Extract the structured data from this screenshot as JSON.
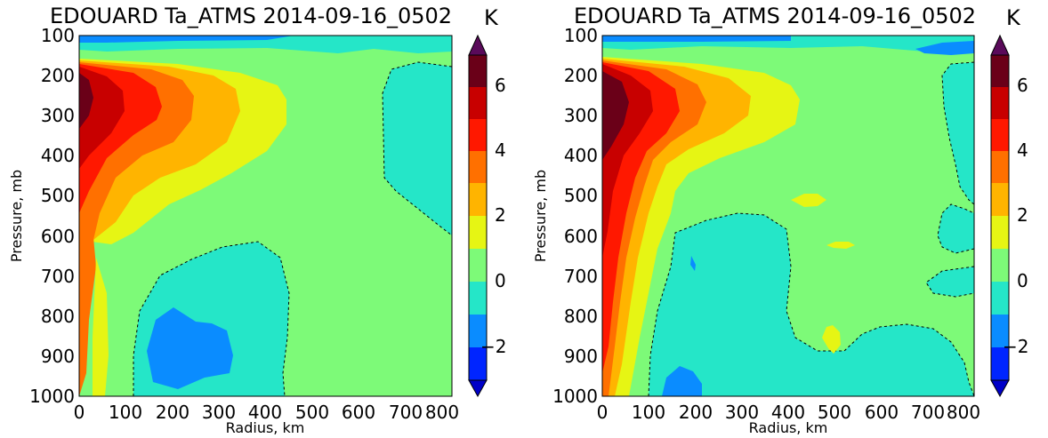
{
  "chart_data": [
    {
      "type": "contour",
      "title": "EDOUARD Ta_ATMS  2014-09-16_0502",
      "xlabel": "Radius, km",
      "ylabel": "Pressure, mb",
      "colorbar_unit": "K",
      "x_ticks": [
        "0",
        "100",
        "200",
        "300",
        "400",
        "500",
        "600",
        "700",
        "800"
      ],
      "y_ticks": [
        "100",
        "200",
        "300",
        "400",
        "500",
        "600",
        "700",
        "800",
        "900",
        "1000"
      ],
      "colorbar_ticks": [
        "6",
        "4",
        "2",
        "0",
        "−2"
      ],
      "xlim": [
        0,
        800
      ],
      "ylim": [
        1000,
        100
      ],
      "y_inverted": true,
      "contour_levels": [
        -3,
        -2,
        -1,
        0,
        1,
        2,
        3,
        4,
        5,
        6,
        7
      ],
      "features": [
        {
          "region": "warm core near center",
          "radius_km": [
            0,
            50
          ],
          "pressure_mb": [
            200,
            300
          ],
          "max_anomaly_K": 7
        },
        {
          "region": "upper warm anomaly",
          "radius_km": [
            0,
            420
          ],
          "pressure_mb": [
            160,
            600
          ],
          "anomaly_K": [
            1,
            7
          ]
        },
        {
          "region": "cool anomaly",
          "radius_km": [
            120,
            440
          ],
          "pressure_mb": [
            640,
            1000
          ],
          "anomaly_K": [
            -2,
            0
          ],
          "min_center_km": 230,
          "min_center_mb": 880
        },
        {
          "region": "outer cool anomaly",
          "radius_km": [
            640,
            800
          ],
          "pressure_mb": [
            160,
            600
          ],
          "anomaly_K": [
            -1,
            0
          ]
        },
        {
          "region": "top cold layer",
          "radius_km": [
            0,
            800
          ],
          "pressure_mb": [
            100,
            140
          ],
          "anomaly_K": [
            -3,
            0
          ]
        }
      ]
    },
    {
      "type": "contour",
      "title": "EDOUARD Ta_ATMS  2014-09-16_0502",
      "xlabel": "Radius, km",
      "ylabel": "Pressure, mb",
      "colorbar_unit": "K",
      "x_ticks": [
        "0",
        "100",
        "200",
        "300",
        "400",
        "500",
        "600",
        "700",
        "800"
      ],
      "y_ticks": [
        "100",
        "200",
        "300",
        "400",
        "500",
        "600",
        "700",
        "800",
        "900",
        "1000"
      ],
      "colorbar_ticks": [
        "6",
        "4",
        "2",
        "0",
        "−2"
      ],
      "xlim": [
        0,
        800
      ],
      "ylim": [
        1000,
        100
      ],
      "y_inverted": true,
      "contour_levels": [
        -3,
        -2,
        -1,
        0,
        1,
        2,
        3,
        4,
        5,
        6,
        7
      ],
      "features": [
        {
          "region": "warm core near center",
          "radius_km": [
            0,
            50
          ],
          "pressure_mb": [
            200,
            350
          ],
          "max_anomaly_K": 7
        },
        {
          "region": "upper warm anomaly",
          "radius_km": [
            0,
            400
          ],
          "pressure_mb": [
            160,
            900
          ],
          "anomaly_K": [
            1,
            7
          ]
        },
        {
          "region": "cool anomaly",
          "radius_km": [
            130,
            880
          ],
          "pressure_mb": [
            560,
            1000
          ],
          "anomaly_K": [
            -2,
            0
          ]
        },
        {
          "region": "outer cool anomaly",
          "radius_km": [
            650,
            800
          ],
          "pressure_mb": [
            150,
            550
          ],
          "anomaly_K": [
            -1,
            0
          ]
        },
        {
          "region": "small warm pockets",
          "centers_km_mb": [
            [
              480,
              500
            ],
            [
              520,
              620
            ],
            [
              490,
              870
            ]
          ],
          "anomaly_K": [
            1,
            2
          ]
        }
      ]
    }
  ],
  "colors": {
    "level_m3_m2": "#0025ff",
    "level_m2_m1": "#0a8cff",
    "level_m1_0": "#25e6c8",
    "level_0_1": "#7dfa78",
    "level_1_2": "#e6f514",
    "level_2_3": "#ffb400",
    "level_3_4": "#ff7000",
    "level_4_5": "#ff1800",
    "level_5_6": "#c80000",
    "level_6_7": "#6a0018",
    "lower_extend": "#0000c8",
    "upper_extend": "#5a0a5a"
  }
}
